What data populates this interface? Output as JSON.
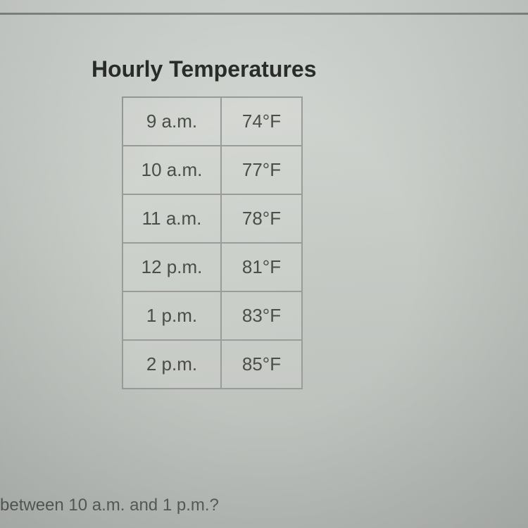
{
  "title": "Hourly Temperatures",
  "table": {
    "type": "table",
    "columns": [
      "time",
      "temperature"
    ],
    "rows": [
      {
        "time": "9 a.m.",
        "temp": "74°F"
      },
      {
        "time": "10 a.m.",
        "temp": "77°F"
      },
      {
        "time": "11 a.m.",
        "temp": "78°F"
      },
      {
        "time": "12 p.m.",
        "temp": "81°F"
      },
      {
        "time": "1 p.m.",
        "temp": "83°F"
      },
      {
        "time": "2 p.m.",
        "temp": "85°F"
      }
    ],
    "border_color": "#999c98",
    "border_width": 2,
    "cell_padding": 18,
    "font_size": 26,
    "text_color": "#4a4d48",
    "background_color": "rgba(240,242,238,0.15)",
    "time_col_width": 140,
    "temp_col_width": 115
  },
  "title_style": {
    "font_size": 32,
    "font_weight": "bold",
    "color": "#2a2d2a"
  },
  "bottom_text": "between 10 a.m. and 1 p.m.?",
  "page_background": "#c5cac5"
}
